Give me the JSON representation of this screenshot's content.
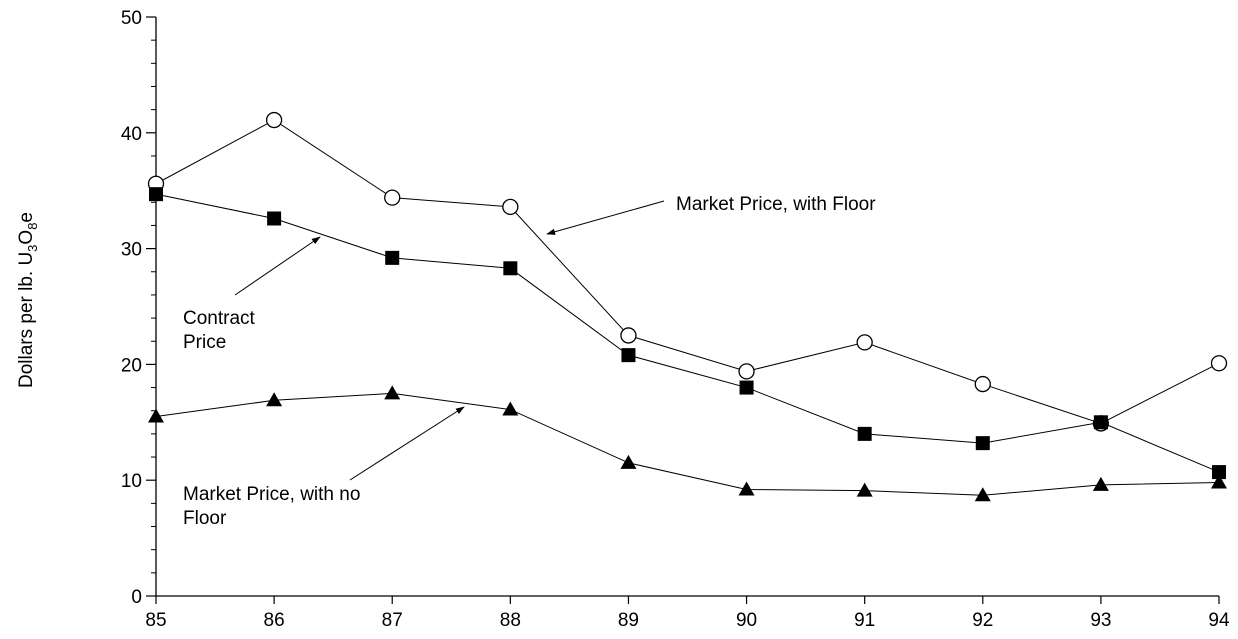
{
  "chart_data": {
    "type": "line",
    "x": [
      "85",
      "86",
      "87",
      "88",
      "89",
      "90",
      "91",
      "92",
      "93",
      "94"
    ],
    "ylabel": "Dollars per lb. U3O8e",
    "ylim": [
      0,
      50
    ],
    "yticks": [
      "0",
      "10",
      "20",
      "30",
      "40",
      "50"
    ],
    "grid": false,
    "legend": "none",
    "series": [
      {
        "name": "Market Price, with Floor",
        "marker": "open-circle",
        "values": [
          35.6,
          41.1,
          34.4,
          33.6,
          22.5,
          19.4,
          21.9,
          18.3,
          14.9,
          20.1
        ]
      },
      {
        "name": "Contract Price",
        "marker": "filled-square",
        "values": [
          34.7,
          32.6,
          29.2,
          28.3,
          20.8,
          18.0,
          14.0,
          13.2,
          15.0,
          10.7
        ]
      },
      {
        "name": "Market Price, with no Floor",
        "marker": "filled-triangle",
        "values": [
          15.5,
          16.9,
          17.5,
          16.1,
          11.5,
          9.2,
          9.1,
          8.7,
          9.6,
          9.8
        ]
      }
    ],
    "annotations": [
      {
        "id": "floor",
        "lines": [
          "Market Price, with Floor"
        ]
      },
      {
        "id": "contract",
        "lines": [
          "Contract",
          "Price"
        ]
      },
      {
        "id": "nofloor",
        "lines": [
          "Market Price, with no",
          "Floor"
        ]
      }
    ]
  }
}
